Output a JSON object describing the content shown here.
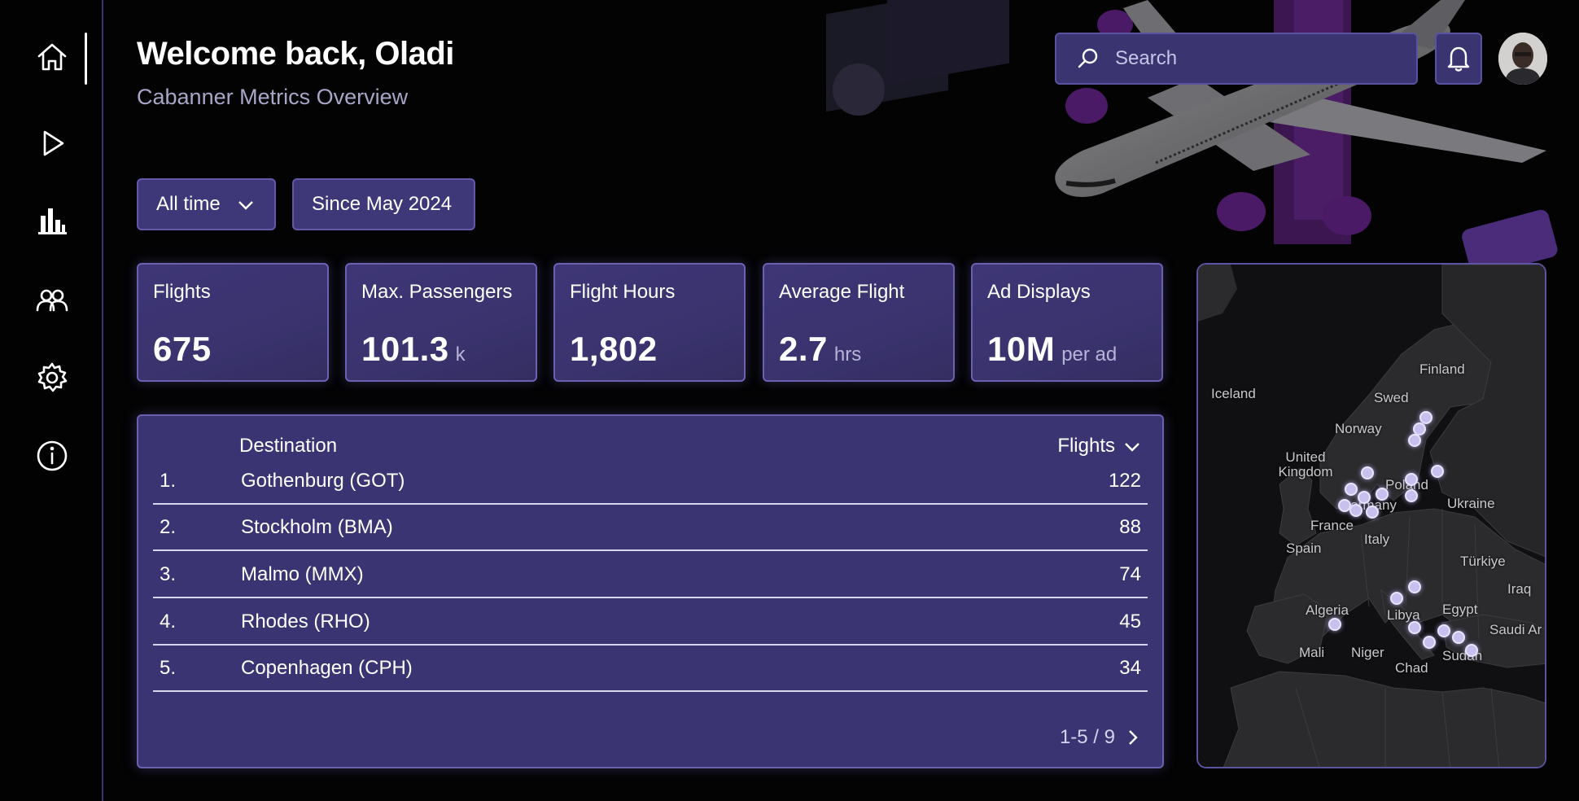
{
  "header": {
    "welcome": "Welcome back, Oladi",
    "subtitle": "Cabanner Metrics Overview"
  },
  "search": {
    "placeholder": "Search"
  },
  "sidebar": {
    "items": [
      {
        "icon": "home-icon",
        "active": true
      },
      {
        "icon": "play-icon"
      },
      {
        "icon": "bar-chart-icon"
      },
      {
        "icon": "users-icon"
      },
      {
        "icon": "gear-icon"
      },
      {
        "icon": "info-icon"
      }
    ]
  },
  "filters": {
    "range": "All time",
    "since": "Since May 2024"
  },
  "stats": [
    {
      "label": "Flights",
      "value": "675",
      "unit": ""
    },
    {
      "label": "Max. Passengers",
      "value": "101.3",
      "unit": "k"
    },
    {
      "label": "Flight Hours",
      "value": "1,802",
      "unit": ""
    },
    {
      "label": "Average Flight",
      "value": "2.7",
      "unit": "hrs"
    },
    {
      "label": "Ad Displays",
      "value": "10M",
      "unit": "per ad"
    }
  ],
  "table": {
    "col_destination": "Destination",
    "col_flights": "Flights",
    "rows": [
      {
        "rank": "1.",
        "destination": "Gothenburg (GOT)",
        "flights": "122"
      },
      {
        "rank": "2.",
        "destination": "Stockholm (BMA)",
        "flights": "88"
      },
      {
        "rank": "3.",
        "destination": "Malmo (MMX)",
        "flights": "74"
      },
      {
        "rank": "4.",
        "destination": "Rhodes (RHO)",
        "flights": "45"
      },
      {
        "rank": "5.",
        "destination": "Copenhagen (CPH)",
        "flights": "34"
      }
    ],
    "pagination": "1-5 / 9"
  },
  "map": {
    "labels": [
      "Iceland",
      "Finland",
      "Swed",
      "Norway",
      "United Kingdom",
      "Poland",
      "Germany",
      "Ukraine",
      "France",
      "Italy",
      "Spain",
      "Türkiye",
      "Iraq",
      "Algeria",
      "Libya",
      "Egypt",
      "Saudi Ar",
      "Mali",
      "Niger",
      "Sudan",
      "Chad"
    ]
  },
  "colors": {
    "accent": "#3b3473",
    "border": "#6a62b0",
    "background": "#030304"
  }
}
